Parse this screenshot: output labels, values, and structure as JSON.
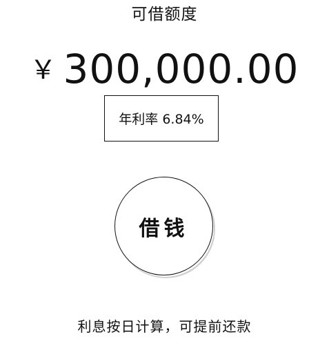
{
  "header": {
    "title": "可借额度"
  },
  "credit": {
    "currency_symbol": "￥",
    "amount": "300,000.00"
  },
  "rate": {
    "label": "年利率 6.84%"
  },
  "actions": {
    "borrow_label": "借钱"
  },
  "footer": {
    "note": "利息按日计算，可提前还款"
  }
}
